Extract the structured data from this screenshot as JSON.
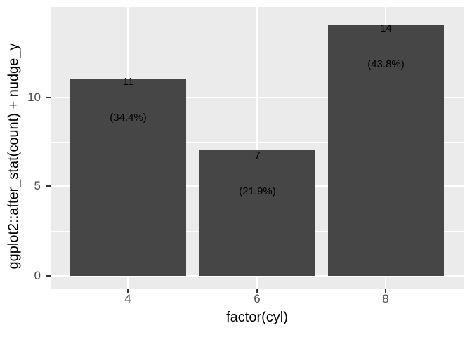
{
  "chart_data": {
    "type": "bar",
    "title": "",
    "xlabel": "factor(cyl)",
    "ylabel": "ggplot2::after_stat(count) + nudge_y",
    "categories": [
      "4",
      "6",
      "8"
    ],
    "values": [
      11,
      7,
      14
    ],
    "bar_labels": [
      [
        "11",
        "(34.4%)"
      ],
      [
        "7",
        "(21.9%)"
      ],
      [
        "14",
        "(43.8%)"
      ]
    ],
    "percentages": [
      34.4,
      21.9,
      43.8
    ],
    "y_ticks": [
      0,
      5,
      10
    ],
    "y_tick_labels": [
      "10",
      "5",
      "0"
    ],
    "ylim": [
      -0.72,
      15.1
    ],
    "bar_width_fraction": 0.9,
    "legend": "none",
    "grid": {
      "major_horizontal_at": [
        0,
        5,
        10
      ],
      "minor_horizontal_at": [
        2.5,
        7.5,
        12.5
      ],
      "major_vertical_at": [
        "4",
        "6",
        "8"
      ],
      "gridline_color": "#FFFFFF"
    },
    "colors": {
      "bar_fill": "#464646",
      "panel_bg": "#EBEBEB",
      "gridline": "#FFFFFF",
      "tick_mark": "#333333",
      "axis_text": "#4D4D4D",
      "label_text": "#000000",
      "background": "#FFFFFF"
    }
  }
}
